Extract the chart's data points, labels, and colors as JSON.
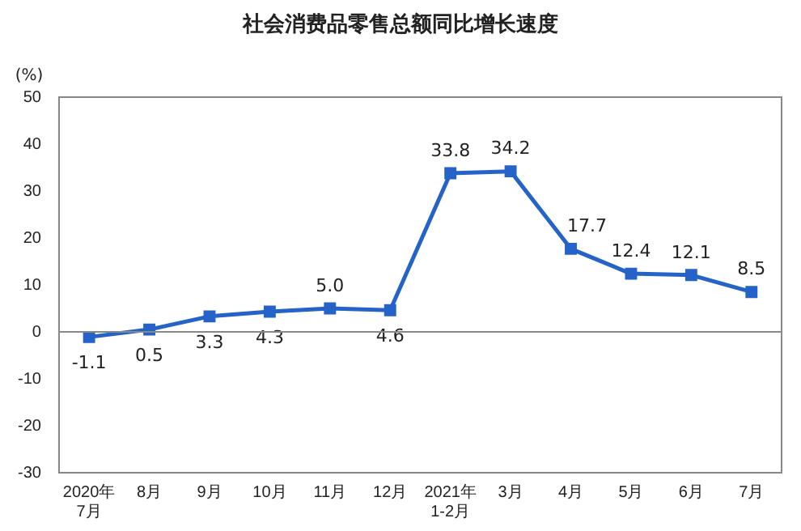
{
  "chart_data": {
    "type": "line",
    "title": "社会消费品零售总额同比增长速度",
    "ylabel": "(%)",
    "categories": [
      "2020年\n7月",
      "8月",
      "9月",
      "10月",
      "11月",
      "12月",
      "2021年\n1-2月",
      "3月",
      "4月",
      "5月",
      "6月",
      "7月"
    ],
    "series": [
      {
        "color": "#2563c9",
        "values": [
          -1.1,
          0.5,
          3.3,
          4.3,
          5.0,
          4.6,
          33.8,
          34.2,
          17.7,
          12.4,
          12.1,
          8.5
        ],
        "value_labels": [
          "-1.1",
          "0.5",
          "3.3",
          "4.3",
          "5.0",
          "4.6",
          "33.8",
          "34.2",
          "17.7",
          "12.4",
          "12.1",
          "8.5"
        ]
      }
    ],
    "ylim": [
      -30,
      50
    ],
    "yticks": [
      -30,
      -20,
      -10,
      0,
      10,
      20,
      30,
      40,
      50
    ],
    "grid": false,
    "ref_lines": [
      {
        "axis": "y",
        "value": 0,
        "color": "#888888"
      }
    ],
    "legend": false,
    "marker": "square",
    "line_style": "solid"
  }
}
